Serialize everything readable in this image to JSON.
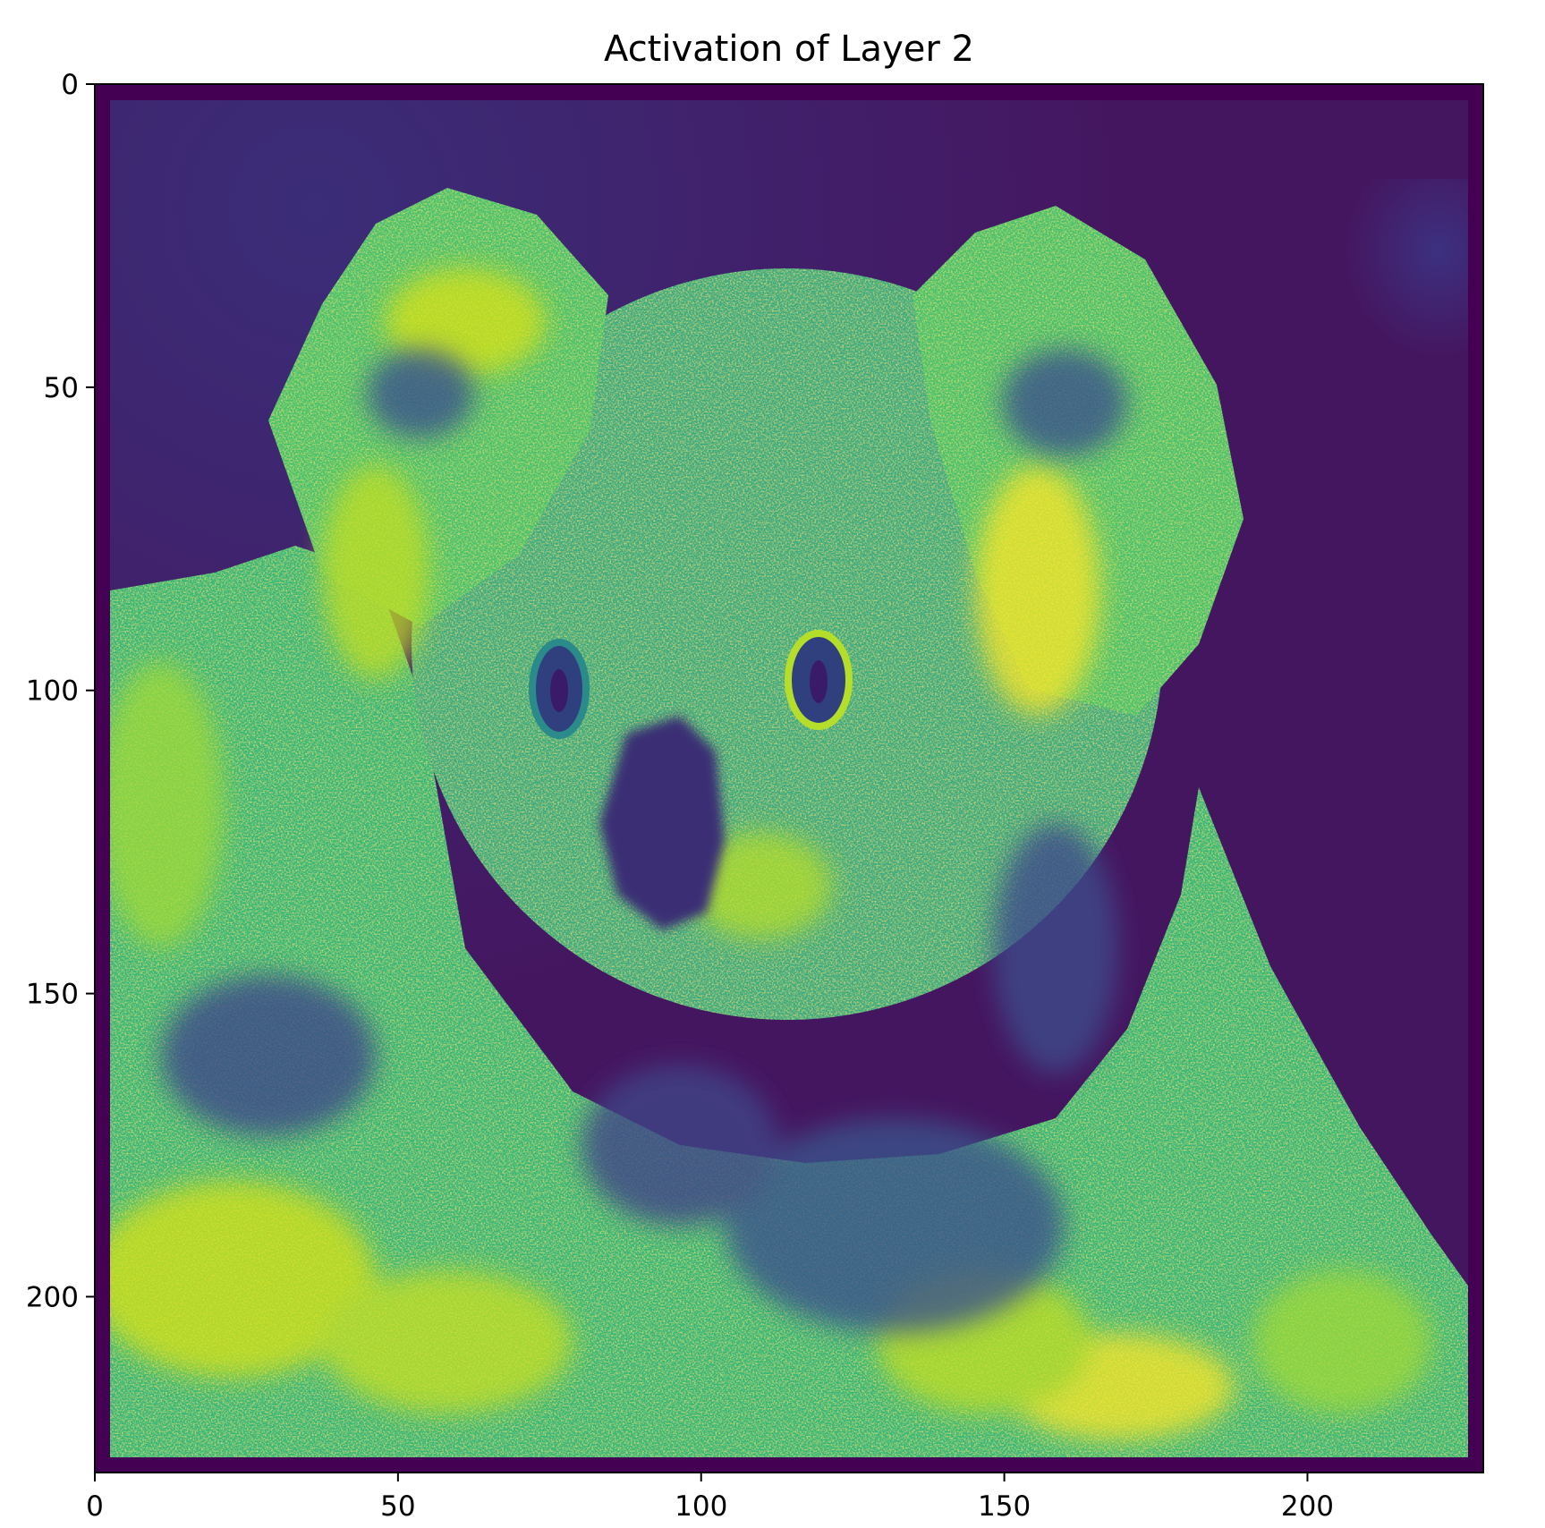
{
  "chart_data": {
    "type": "heatmap",
    "title": "Activation of Layer 2",
    "xlabel": "",
    "ylabel": "",
    "xlim": [
      0,
      229
    ],
    "ylim": [
      229,
      0
    ],
    "x_ticks": [
      0,
      50,
      100,
      150,
      200
    ],
    "y_ticks": [
      0,
      50,
      100,
      150,
      200
    ],
    "colormap": "viridis",
    "grid": false,
    "image_content": "koala face activation map",
    "colors": {
      "viridis_low": "#440154",
      "viridis_mid": "#21918c",
      "viridis_high": "#fde725"
    }
  }
}
